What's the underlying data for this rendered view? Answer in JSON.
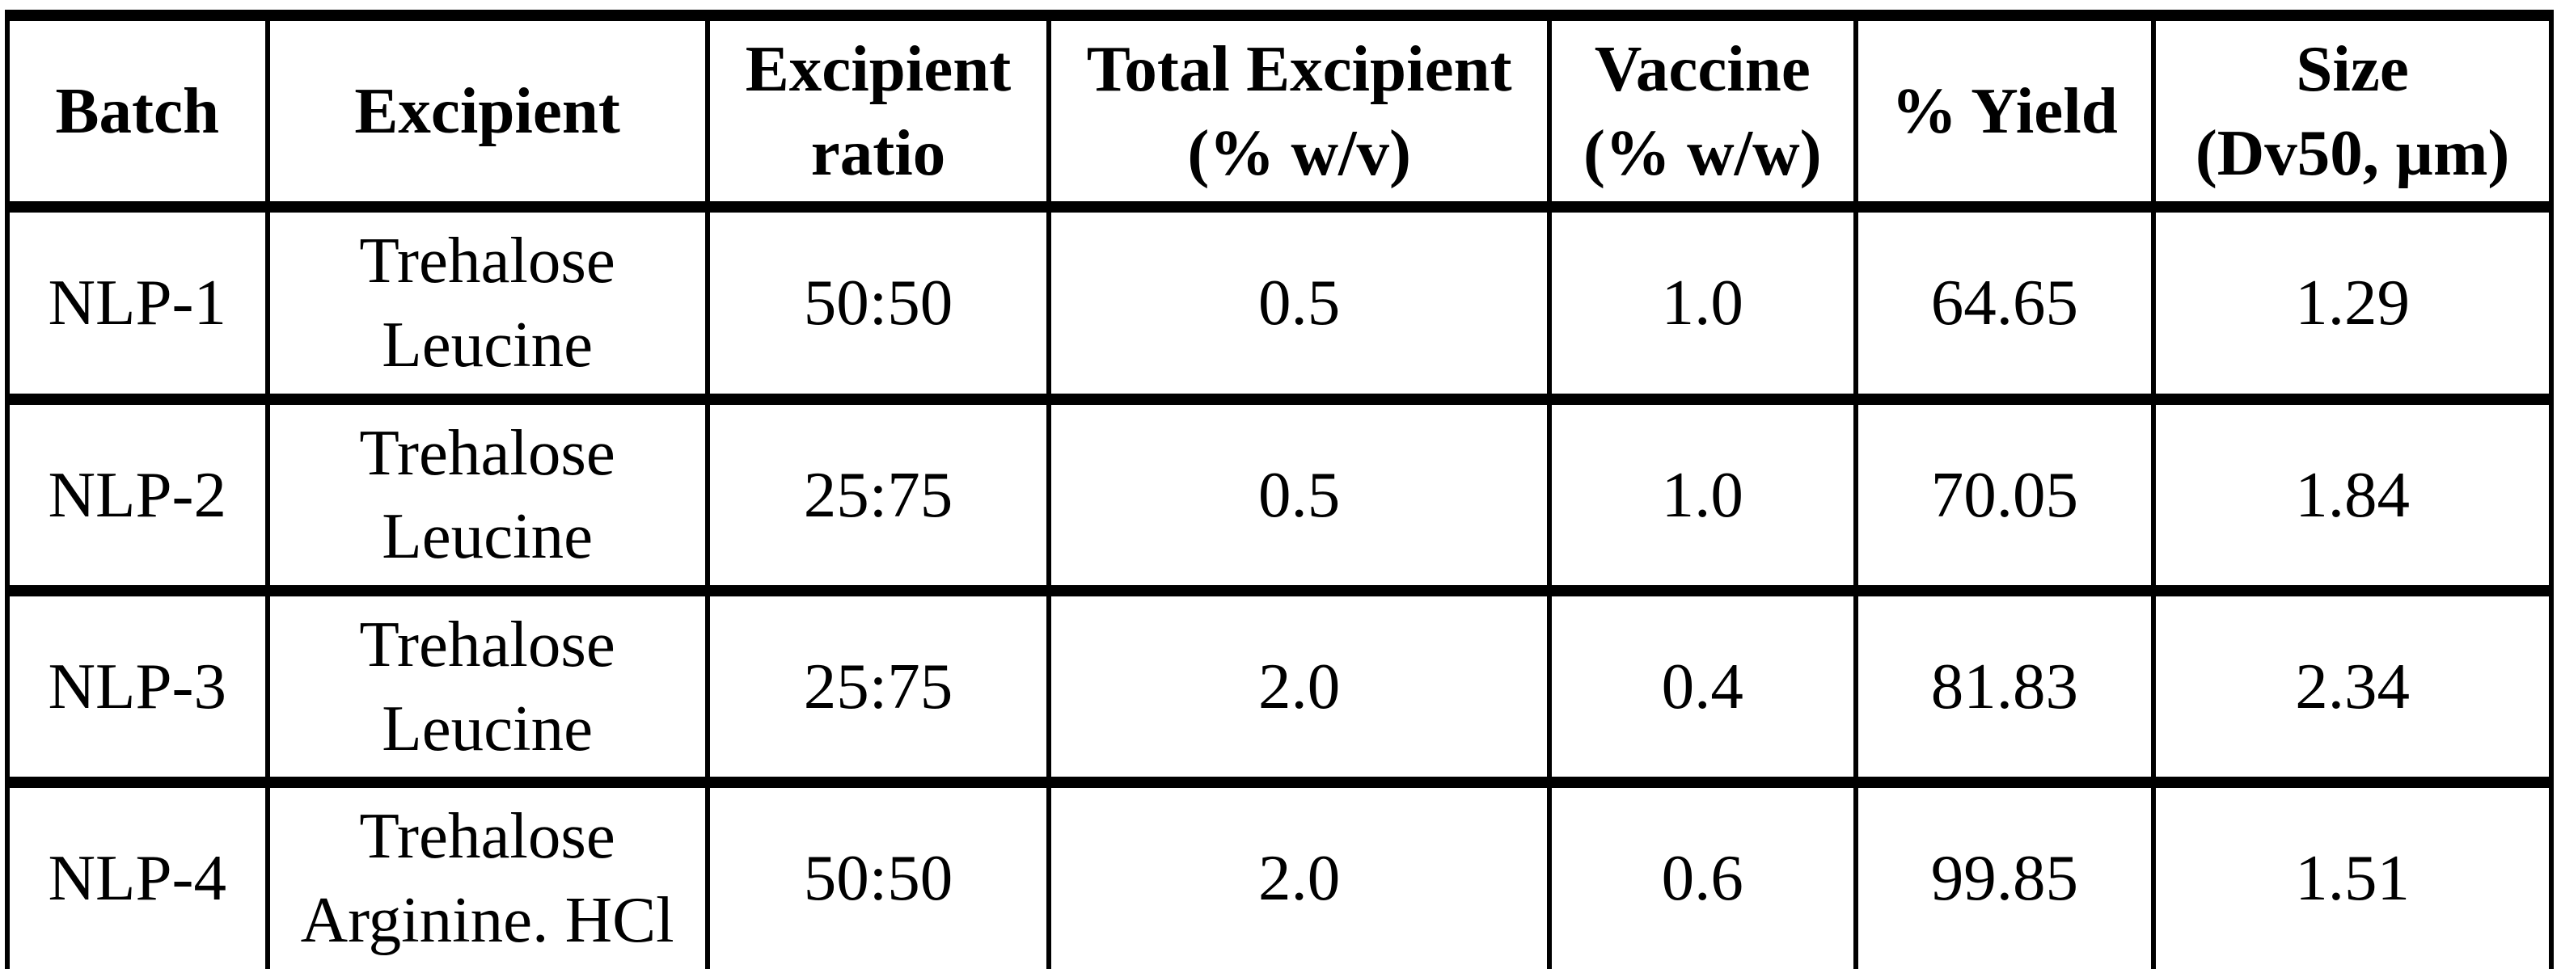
{
  "table": {
    "columns": [
      {
        "label": "Batch"
      },
      {
        "label": "Excipient"
      },
      {
        "label": "Excipient\nratio"
      },
      {
        "label": "Total Excipient\n(% w/v)"
      },
      {
        "label": "Vaccine\n(% w/w)"
      },
      {
        "label": "% Yield"
      },
      {
        "label": "Size\n(Dv50, µm)"
      }
    ],
    "rows": [
      [
        "NLP-1",
        "Trehalose\nLeucine",
        "50:50",
        "0.5",
        "1.0",
        "64.65",
        "1.29"
      ],
      [
        "NLP-2",
        "Trehalose\nLeucine",
        "25:75",
        "0.5",
        "1.0",
        "70.05",
        "1.84"
      ],
      [
        "NLP-3",
        "Trehalose\nLeucine",
        "25:75",
        "2.0",
        "0.4",
        "81.83",
        "2.34"
      ],
      [
        "NLP-4",
        "Trehalose\nArginine. HCl",
        "50:50",
        "2.0",
        "0.6",
        "99.85",
        "1.51"
      ]
    ]
  },
  "chart_data": {
    "type": "table",
    "columns": [
      "Batch",
      "Excipient",
      "Excipient ratio",
      "Total Excipient (% w/v)",
      "Vaccine (% w/w)",
      "% Yield",
      "Size (Dv50, µm)"
    ],
    "records": [
      {
        "batch": "NLP-1",
        "excipient": "Trehalose Leucine",
        "excipient_ratio": "50:50",
        "total_excipient_pct_wv": 0.5,
        "vaccine_pct_ww": 1.0,
        "pct_yield": 64.65,
        "size_dv50_um": 1.29
      },
      {
        "batch": "NLP-2",
        "excipient": "Trehalose Leucine",
        "excipient_ratio": "25:75",
        "total_excipient_pct_wv": 0.5,
        "vaccine_pct_ww": 1.0,
        "pct_yield": 70.05,
        "size_dv50_um": 1.84
      },
      {
        "batch": "NLP-3",
        "excipient": "Trehalose Leucine",
        "excipient_ratio": "25:75",
        "total_excipient_pct_wv": 2.0,
        "vaccine_pct_ww": 0.4,
        "pct_yield": 81.83,
        "size_dv50_um": 2.34
      },
      {
        "batch": "NLP-4",
        "excipient": "Trehalose Arginine. HCl",
        "excipient_ratio": "50:50",
        "total_excipient_pct_wv": 2.0,
        "vaccine_pct_ww": 0.6,
        "pct_yield": 99.85,
        "size_dv50_um": 1.51
      }
    ]
  },
  "colors": {
    "background": "#ffffff",
    "border": "#000000",
    "text": "#000000"
  }
}
